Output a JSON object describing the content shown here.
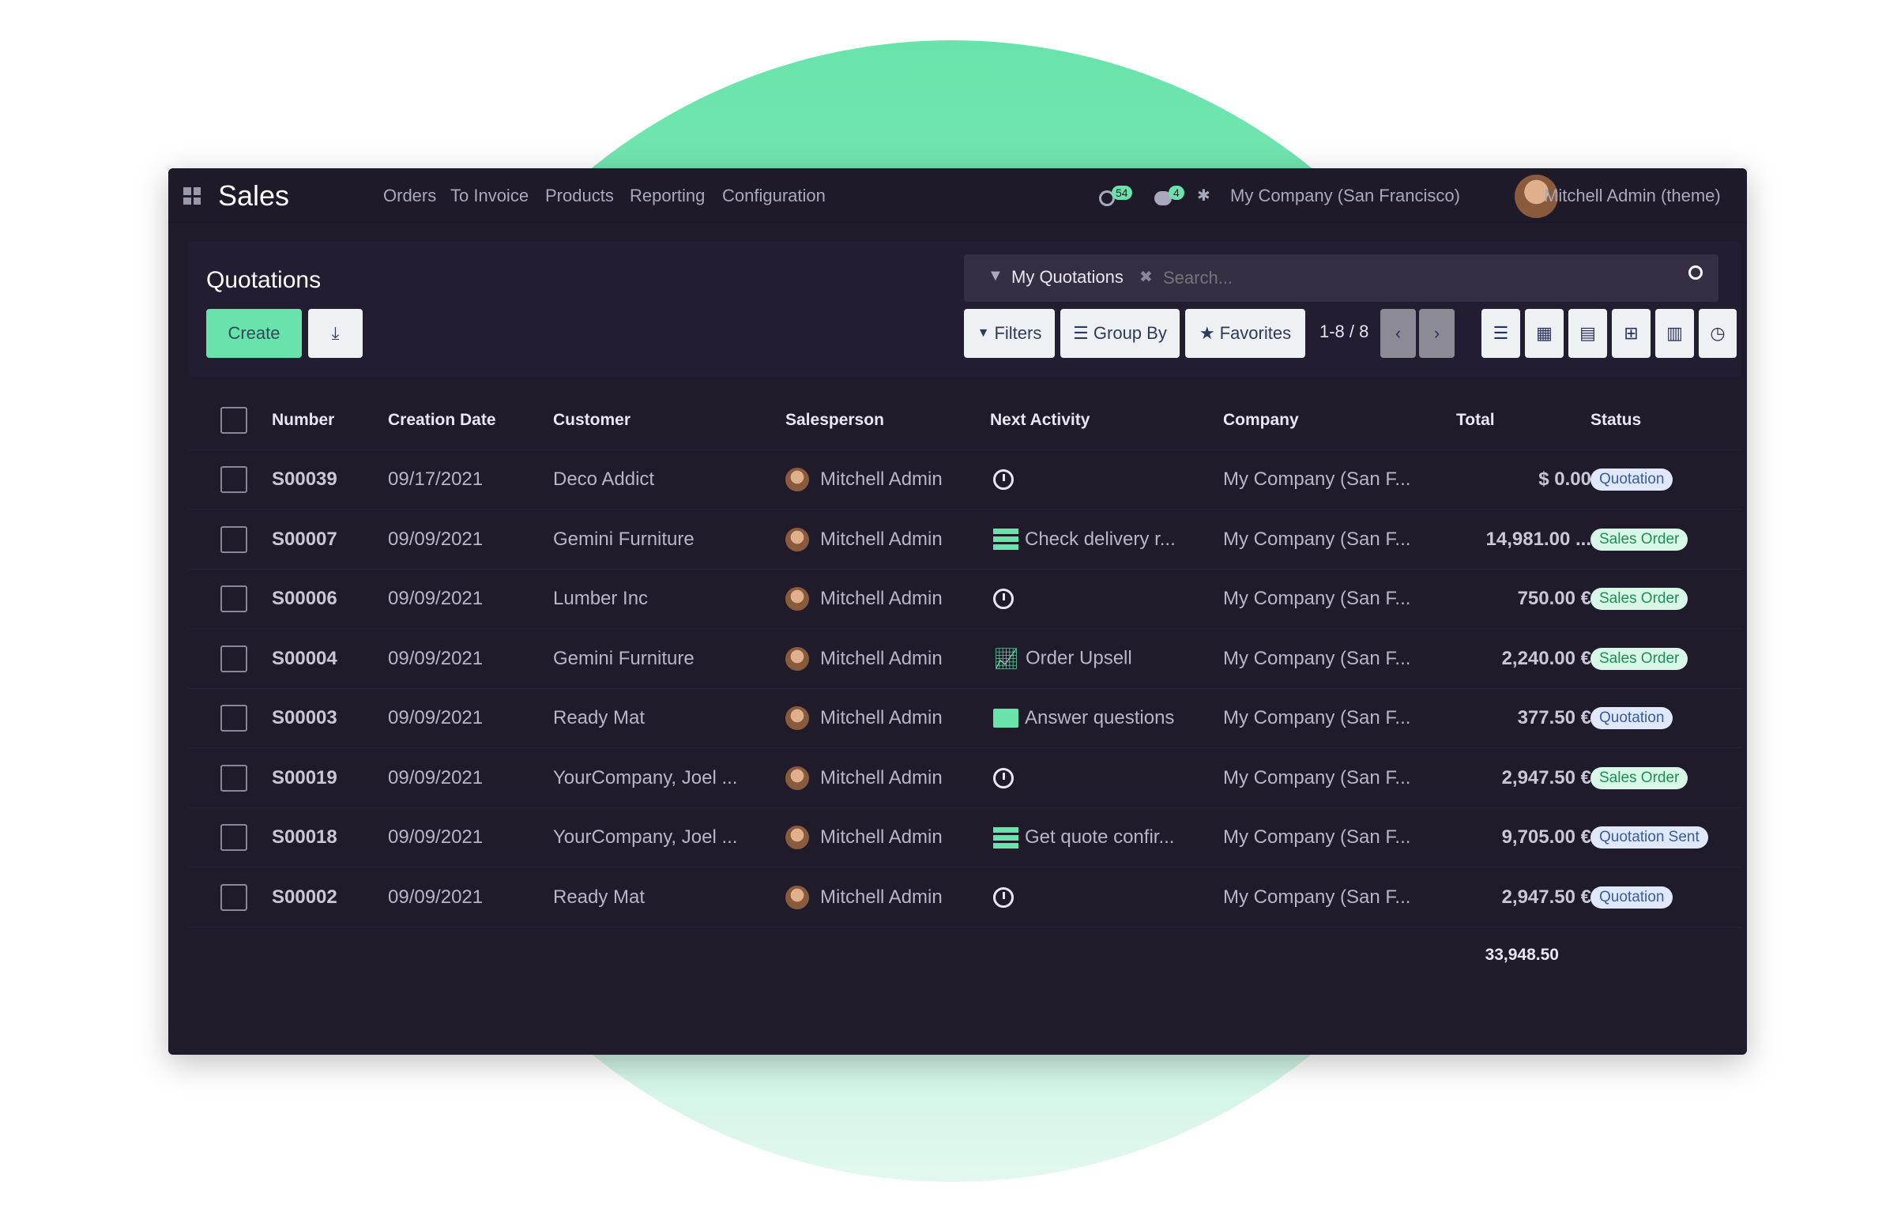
{
  "app": {
    "title": "Sales",
    "menu": [
      "Orders",
      "To Invoice",
      "Products",
      "Reporting",
      "Configuration"
    ],
    "activity_count": "54",
    "message_count": "4",
    "company": "My Company (San Francisco)",
    "user": "Mitchell Admin (theme)"
  },
  "control": {
    "title": "Quotations",
    "create": "Create",
    "facet": "My Quotations",
    "search_placeholder": "Search...",
    "filters": "Filters",
    "group_by": "Group By",
    "favorites": "Favorites",
    "pager": "1-8 / 8"
  },
  "colors": {
    "accent": "#69e3ab",
    "background": "#1f1b2b"
  },
  "table": {
    "headers": [
      "Number",
      "Creation Date",
      "Customer",
      "Salesperson",
      "Next Activity",
      "Company",
      "Total",
      "Status"
    ],
    "rows": [
      {
        "number": "S00039",
        "date": "09/17/2021",
        "customer": "Deco Addict",
        "salesperson": "Mitchell Admin",
        "activity_icon": "clock",
        "activity": "",
        "company": "My Company (San F...",
        "total": "$ 0.00",
        "status": "Quotation"
      },
      {
        "number": "S00007",
        "date": "09/09/2021",
        "customer": "Gemini Furniture",
        "salesperson": "Mitchell Admin",
        "activity_icon": "tasks",
        "activity": "Check delivery r...",
        "company": "My Company (San F...",
        "total": "14,981.00 ...",
        "status": "Sales Order"
      },
      {
        "number": "S00006",
        "date": "09/09/2021",
        "customer": "Lumber Inc",
        "salesperson": "Mitchell Admin",
        "activity_icon": "clock",
        "activity": "",
        "company": "My Company (San F...",
        "total": "750.00 €",
        "status": "Sales Order"
      },
      {
        "number": "S00004",
        "date": "09/09/2021",
        "customer": "Gemini Furniture",
        "salesperson": "Mitchell Admin",
        "activity_icon": "chart",
        "activity": "Order Upsell",
        "company": "My Company (San F...",
        "total": "2,240.00 €",
        "status": "Sales Order"
      },
      {
        "number": "S00003",
        "date": "09/09/2021",
        "customer": "Ready Mat",
        "salesperson": "Mitchell Admin",
        "activity_icon": "envelope",
        "activity": "Answer questions",
        "company": "My Company (San F...",
        "total": "377.50 €",
        "status": "Quotation"
      },
      {
        "number": "S00019",
        "date": "09/09/2021",
        "customer": "YourCompany, Joel ...",
        "salesperson": "Mitchell Admin",
        "activity_icon": "clock",
        "activity": "",
        "company": "My Company (San F...",
        "total": "2,947.50 €",
        "status": "Sales Order"
      },
      {
        "number": "S00018",
        "date": "09/09/2021",
        "customer": "YourCompany, Joel ...",
        "salesperson": "Mitchell Admin",
        "activity_icon": "tasks",
        "activity": "Get quote confir...",
        "company": "My Company (San F...",
        "total": "9,705.00 €",
        "status": "Quotation Sent"
      },
      {
        "number": "S00002",
        "date": "09/09/2021",
        "customer": "Ready Mat",
        "salesperson": "Mitchell Admin",
        "activity_icon": "clock",
        "activity": "",
        "company": "My Company (San F...",
        "total": "2,947.50 €",
        "status": "Quotation"
      }
    ],
    "sum": "33,948.50"
  }
}
